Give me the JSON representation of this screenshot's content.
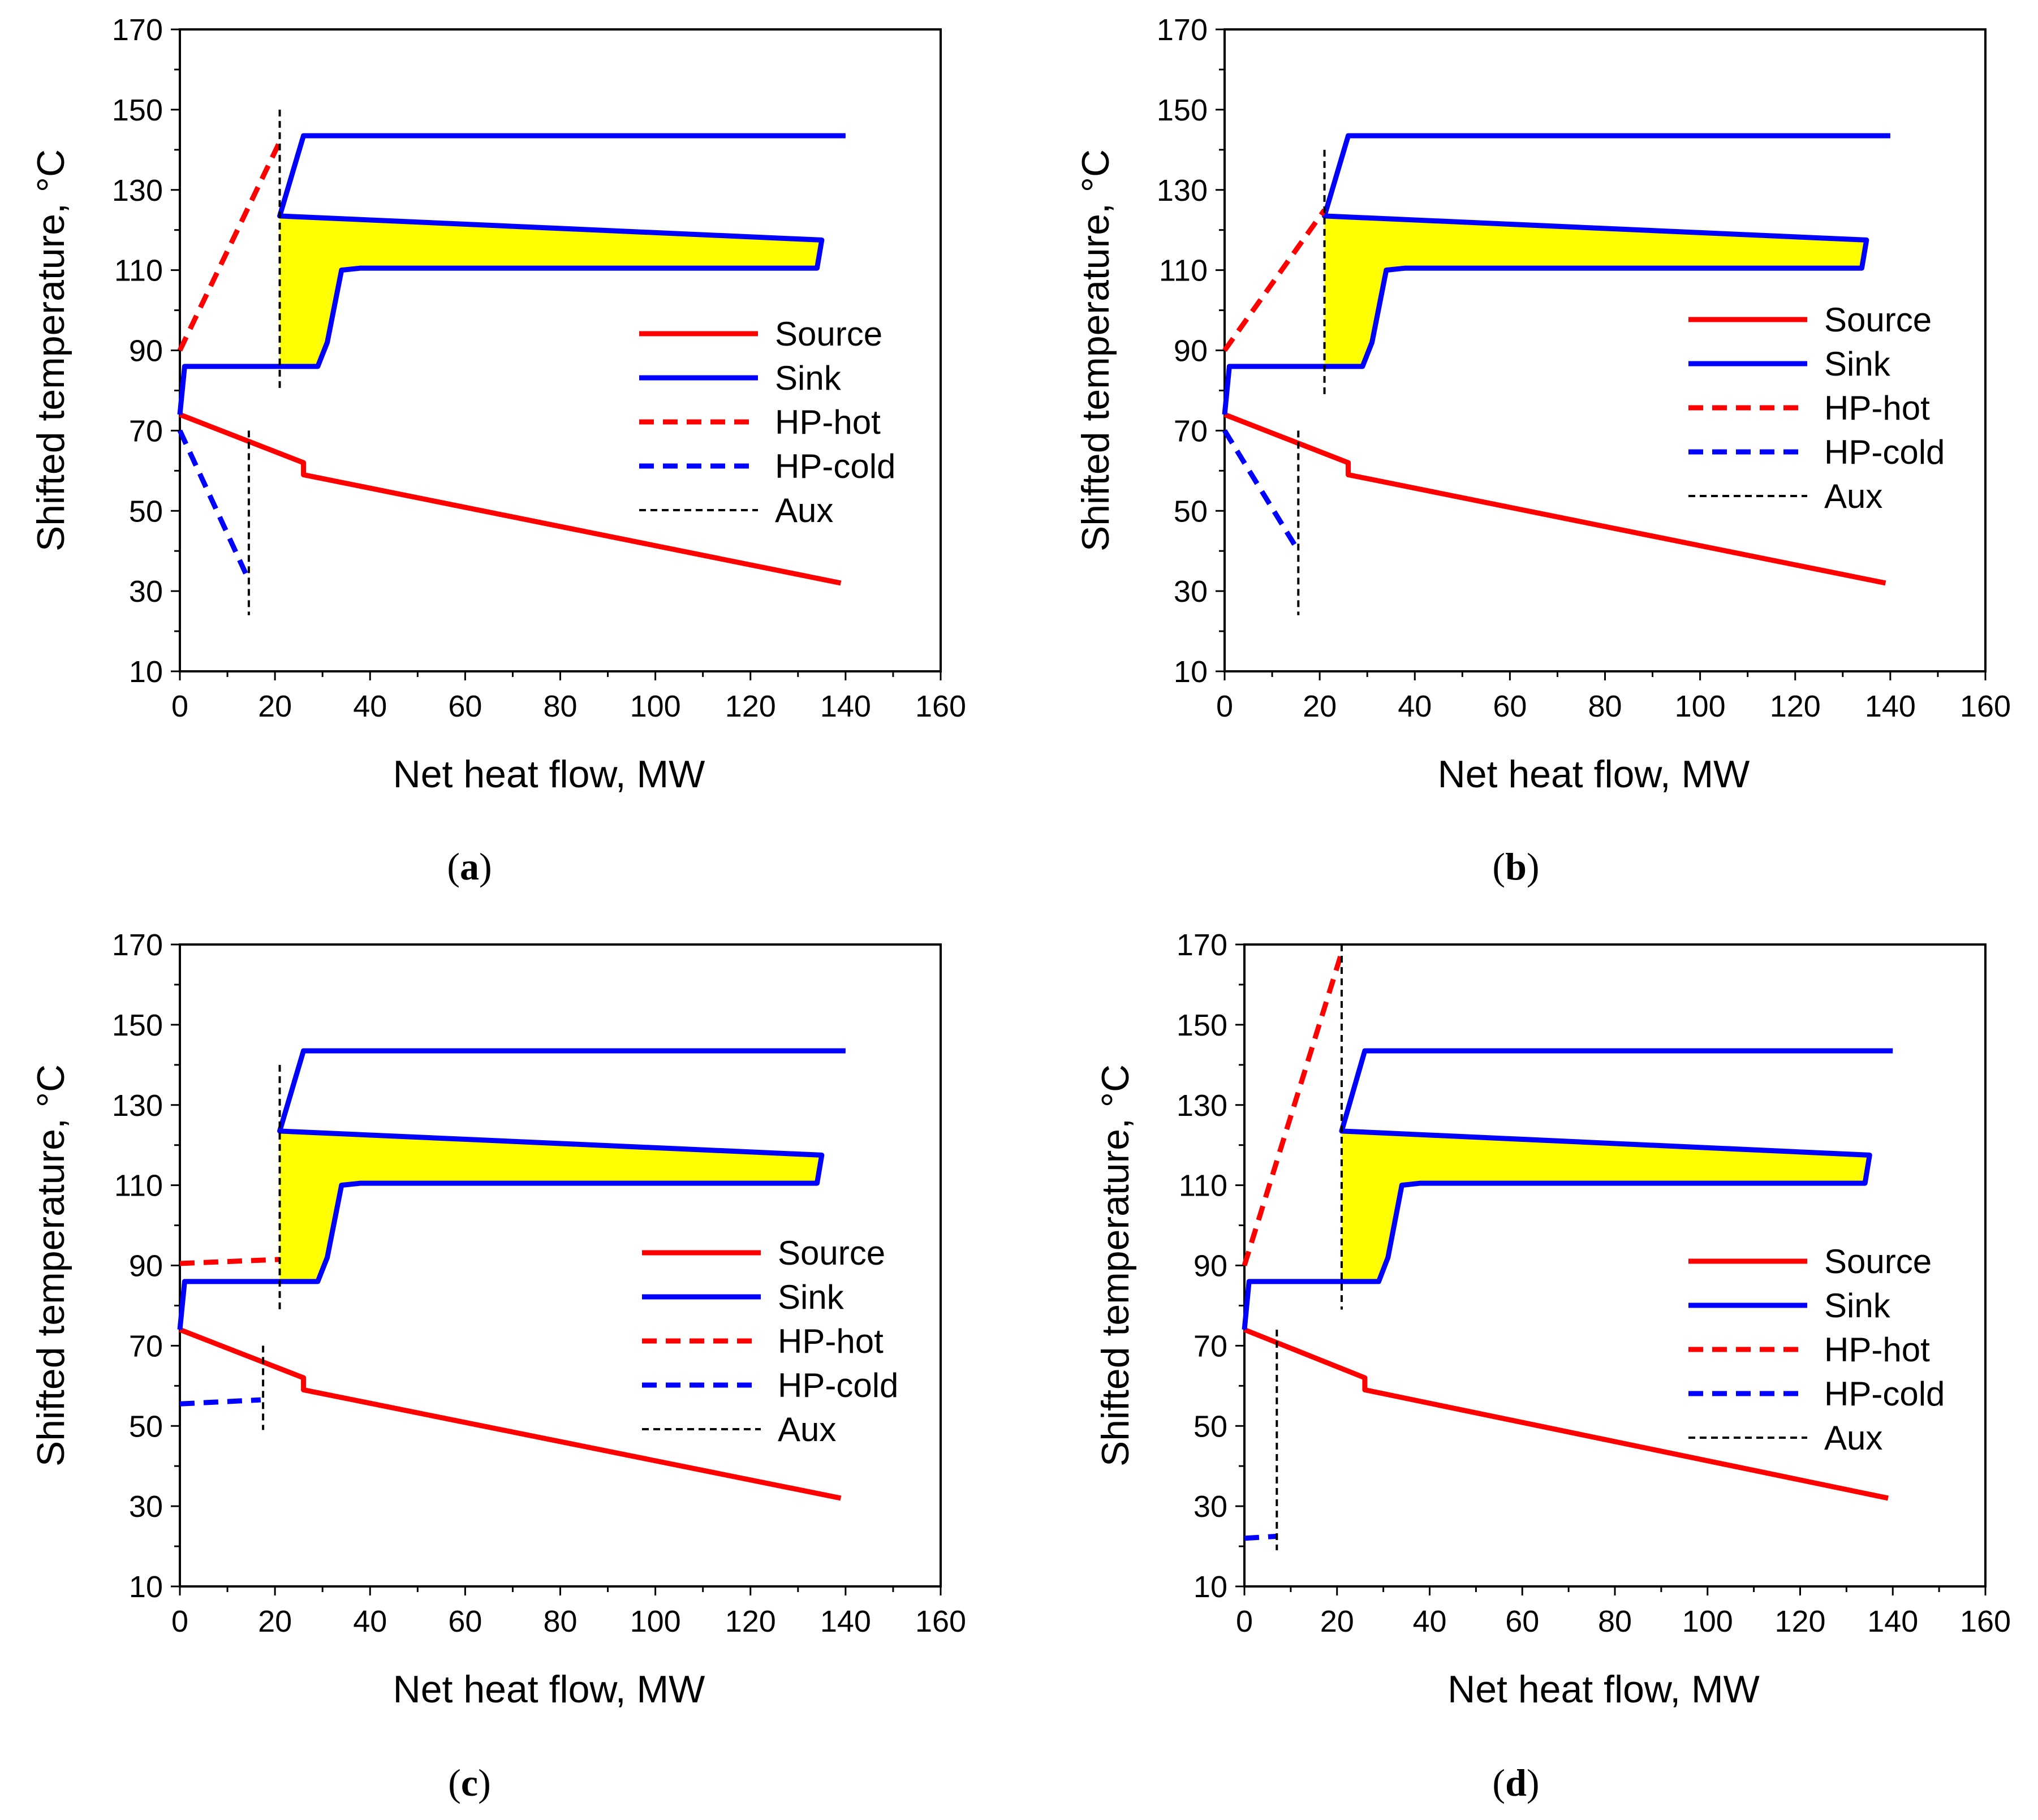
{
  "colors": {
    "source": "#ff0000",
    "sink": "#0000ff",
    "hp_hot": "#ff0000",
    "hp_cold": "#0000ff",
    "aux": "#000000",
    "fill": "#ffff00"
  },
  "chart_data": [
    {
      "panel": "a",
      "caption": {
        "open": "(",
        "letter": "a",
        "close": ")"
      },
      "type": "line",
      "xlabel": "Net heat flow, MW",
      "ylabel": "Shifted  temperature, °C",
      "xlim": [
        0,
        160
      ],
      "ylim": [
        10,
        170
      ],
      "xticks": [
        0,
        20,
        40,
        60,
        80,
        100,
        120,
        140,
        160
      ],
      "yticks": [
        10,
        30,
        50,
        70,
        90,
        110,
        130,
        150,
        170
      ],
      "legend_position": "right-middle",
      "legend": [
        "Source",
        "Sink",
        "HP-hot",
        "HP-cold",
        "Aux"
      ],
      "series": [
        {
          "name": "Source",
          "style": "solid",
          "points": [
            [
              0,
              74
            ],
            [
              26,
              62
            ],
            [
              26,
              59
            ],
            [
              139,
              32
            ]
          ]
        },
        {
          "name": "Sink",
          "style": "solid",
          "points": [
            [
              0,
              74
            ],
            [
              1,
              86
            ],
            [
              29,
              86
            ],
            [
              31,
              92
            ],
            [
              34,
              110
            ],
            [
              38,
              110.5
            ],
            [
              134,
              110.5
            ],
            [
              135,
              117.5
            ],
            [
              21,
              123.5
            ],
            [
              26,
              143.5
            ],
            [
              140,
              143.5
            ]
          ]
        },
        {
          "name": "HP-hot",
          "style": "dashed",
          "points": [
            [
              0,
              90
            ],
            [
              21,
              142
            ]
          ]
        },
        {
          "name": "HP-cold",
          "style": "dashed",
          "points": [
            [
              0,
              70
            ],
            [
              14,
              34
            ]
          ]
        },
        {
          "name": "Aux",
          "style": "thin-dashed",
          "points": [
            [
              21,
              150
            ],
            [
              21,
              80
            ]
          ]
        },
        {
          "name": "Aux",
          "style": "thin-dashed",
          "points": [
            [
              14.5,
              70
            ],
            [
              14.5,
              24
            ]
          ]
        }
      ],
      "shaded_region": [
        [
          21,
          123.5
        ],
        [
          135,
          117.5
        ],
        [
          134,
          110.5
        ],
        [
          38,
          110.5
        ],
        [
          34,
          110
        ],
        [
          31,
          92
        ],
        [
          29,
          86
        ],
        [
          21,
          86
        ]
      ]
    },
    {
      "panel": "b",
      "caption": {
        "open": "(",
        "letter": "b",
        "close": ")"
      },
      "type": "line",
      "xlabel": "Net heat flow, MW",
      "ylabel": "Shifted  temperature, °C",
      "xlim": [
        0,
        160
      ],
      "ylim": [
        10,
        170
      ],
      "xticks": [
        0,
        20,
        40,
        60,
        80,
        100,
        120,
        140,
        160
      ],
      "yticks": [
        10,
        30,
        50,
        70,
        90,
        110,
        130,
        150,
        170
      ],
      "legend_position": "right-middle",
      "legend": [
        "Source",
        "Sink",
        "HP-hot",
        "HP-cold",
        "Aux"
      ],
      "series": [
        {
          "name": "Source",
          "style": "solid",
          "points": [
            [
              0,
              74
            ],
            [
              26,
              62
            ],
            [
              26,
              59
            ],
            [
              139,
              32
            ]
          ]
        },
        {
          "name": "Sink",
          "style": "solid",
          "points": [
            [
              0,
              74
            ],
            [
              1,
              86
            ],
            [
              29,
              86
            ],
            [
              31,
              92
            ],
            [
              34,
              110
            ],
            [
              38,
              110.5
            ],
            [
              134,
              110.5
            ],
            [
              135,
              117.5
            ],
            [
              21,
              123.5
            ],
            [
              26,
              143.5
            ],
            [
              140,
              143.5
            ]
          ]
        },
        {
          "name": "HP-hot",
          "style": "dashed",
          "points": [
            [
              0,
              90
            ],
            [
              21,
              125
            ]
          ]
        },
        {
          "name": "HP-cold",
          "style": "dashed",
          "points": [
            [
              0,
              70
            ],
            [
              15,
              41
            ]
          ]
        },
        {
          "name": "Aux",
          "style": "thin-dashed",
          "points": [
            [
              21,
              140
            ],
            [
              21,
              79
            ]
          ]
        },
        {
          "name": "Aux",
          "style": "thin-dashed",
          "points": [
            [
              15.5,
              70
            ],
            [
              15.5,
              24
            ]
          ]
        }
      ],
      "shaded_region": [
        [
          21,
          123.5
        ],
        [
          135,
          117.5
        ],
        [
          134,
          110.5
        ],
        [
          38,
          110.5
        ],
        [
          34,
          110
        ],
        [
          31,
          92
        ],
        [
          29,
          86
        ],
        [
          21,
          86
        ]
      ]
    },
    {
      "panel": "c",
      "caption": {
        "open": "(",
        "letter": "c",
        "close": ")"
      },
      "type": "line",
      "xlabel": "Net heat flow, MW",
      "ylabel": "Shifted  temperature, °C",
      "xlim": [
        0,
        160
      ],
      "ylim": [
        10,
        170
      ],
      "xticks": [
        0,
        20,
        40,
        60,
        80,
        100,
        120,
        140,
        160
      ],
      "yticks": [
        10,
        30,
        50,
        70,
        90,
        110,
        130,
        150,
        170
      ],
      "legend_position": "right-middle",
      "legend": [
        "Source",
        "Sink",
        "HP-hot",
        "HP-cold",
        "Aux"
      ],
      "series": [
        {
          "name": "Source",
          "style": "solid",
          "points": [
            [
              0,
              74
            ],
            [
              26,
              62
            ],
            [
              26,
              59
            ],
            [
              139,
              32
            ]
          ]
        },
        {
          "name": "Sink",
          "style": "solid",
          "points": [
            [
              0,
              74
            ],
            [
              1,
              86
            ],
            [
              29,
              86
            ],
            [
              31,
              92
            ],
            [
              34,
              110
            ],
            [
              38,
              110.5
            ],
            [
              134,
              110.5
            ],
            [
              135,
              117.5
            ],
            [
              21,
              123.5
            ],
            [
              26,
              143.5
            ],
            [
              140,
              143.5
            ]
          ]
        },
        {
          "name": "HP-hot",
          "style": "dashed",
          "points": [
            [
              0,
              90.5
            ],
            [
              21,
              91.5
            ]
          ]
        },
        {
          "name": "HP-cold",
          "style": "dashed",
          "points": [
            [
              0,
              55.5
            ],
            [
              17,
              56.5
            ]
          ]
        },
        {
          "name": "Aux",
          "style": "thin-dashed",
          "points": [
            [
              21,
              140
            ],
            [
              21,
              79
            ]
          ]
        },
        {
          "name": "Aux",
          "style": "thin-dashed",
          "points": [
            [
              17.5,
              70
            ],
            [
              17.5,
              49
            ]
          ]
        }
      ],
      "shaded_region": [
        [
          21,
          123.5
        ],
        [
          135,
          117.5
        ],
        [
          134,
          110.5
        ],
        [
          38,
          110.5
        ],
        [
          34,
          110
        ],
        [
          31,
          92
        ],
        [
          29,
          86
        ],
        [
          21,
          86
        ]
      ]
    },
    {
      "panel": "d",
      "caption": {
        "open": "(",
        "letter": "d",
        "close": ")"
      },
      "type": "line",
      "xlabel": "Net heat flow, MW",
      "ylabel": "Shifted  temperature, °C",
      "xlim": [
        0,
        160
      ],
      "ylim": [
        10,
        170
      ],
      "xticks": [
        0,
        20,
        40,
        60,
        80,
        100,
        120,
        140,
        160
      ],
      "yticks": [
        10,
        30,
        50,
        70,
        90,
        110,
        130,
        150,
        170
      ],
      "legend_position": "right-middle",
      "legend": [
        "Source",
        "Sink",
        "HP-hot",
        "HP-cold",
        "Aux"
      ],
      "series": [
        {
          "name": "Source",
          "style": "solid",
          "points": [
            [
              0,
              74
            ],
            [
              26,
              62
            ],
            [
              26,
              59
            ],
            [
              139,
              32
            ]
          ]
        },
        {
          "name": "Sink",
          "style": "solid",
          "points": [
            [
              0,
              74
            ],
            [
              1,
              86
            ],
            [
              29,
              86
            ],
            [
              31,
              92
            ],
            [
              34,
              110
            ],
            [
              38,
              110.5
            ],
            [
              134,
              110.5
            ],
            [
              135,
              117.5
            ],
            [
              21,
              123.5
            ],
            [
              26,
              143.5
            ],
            [
              140,
              143.5
            ]
          ]
        },
        {
          "name": "HP-hot",
          "style": "dashed",
          "points": [
            [
              0,
              90
            ],
            [
              21,
              168
            ]
          ]
        },
        {
          "name": "HP-cold",
          "style": "dashed",
          "points": [
            [
              0,
              22
            ],
            [
              7,
              22.5
            ]
          ]
        },
        {
          "name": "Aux",
          "style": "thin-dashed",
          "points": [
            [
              21,
              170
            ],
            [
              21,
              79
            ]
          ]
        },
        {
          "name": "Aux",
          "style": "thin-dashed",
          "points": [
            [
              7,
              74
            ],
            [
              7,
              19
            ]
          ]
        }
      ],
      "shaded_region": [
        [
          21,
          123.5
        ],
        [
          135,
          117.5
        ],
        [
          134,
          110.5
        ],
        [
          38,
          110.5
        ],
        [
          34,
          110
        ],
        [
          31,
          92
        ],
        [
          29,
          86
        ],
        [
          21,
          86
        ]
      ]
    }
  ]
}
